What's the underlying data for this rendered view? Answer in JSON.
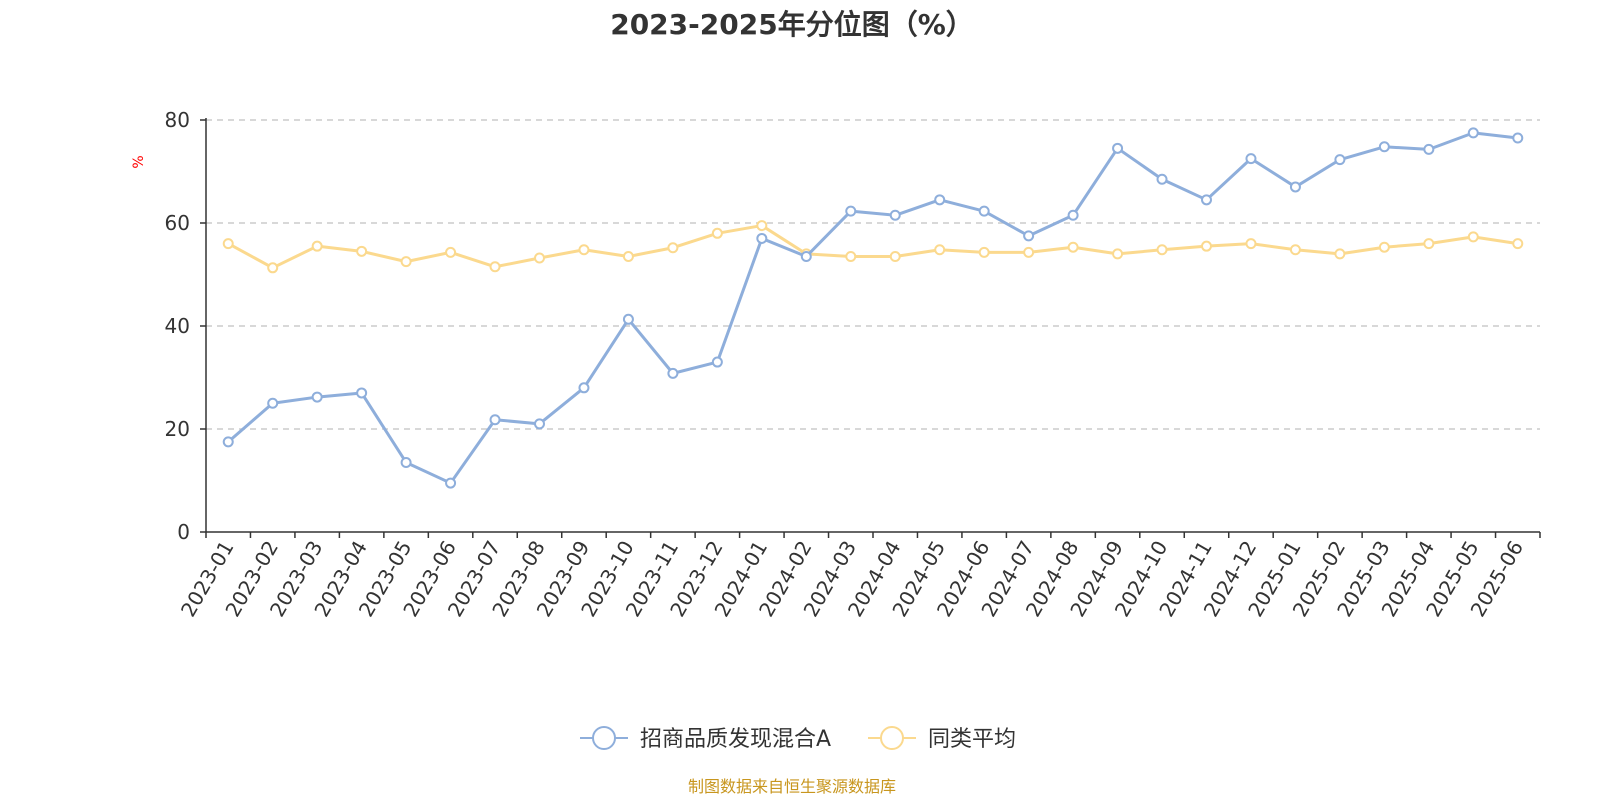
{
  "chart_data": {
    "type": "line",
    "title": "2023-2025年分位图（%）",
    "ylabel": "%",
    "ylim": [
      0,
      80
    ],
    "yticks": [
      0,
      20,
      40,
      60,
      80
    ],
    "grid": true,
    "legend_position": "bottom-center",
    "categories": [
      "2023-01",
      "2023-02",
      "2023-03",
      "2023-04",
      "2023-05",
      "2023-06",
      "2023-07",
      "2023-08",
      "2023-09",
      "2023-10",
      "2023-11",
      "2023-12",
      "2024-01",
      "2024-02",
      "2024-03",
      "2024-04",
      "2024-05",
      "2024-06",
      "2024-07",
      "2024-08",
      "2024-09",
      "2024-10",
      "2024-11",
      "2024-12",
      "2025-01",
      "2025-02",
      "2025-03",
      "2025-04",
      "2025-05",
      "2025-06"
    ],
    "series": [
      {
        "name": "招商品质发现混合A",
        "color": "#8eaedb",
        "values": [
          17.5,
          25,
          26.2,
          27,
          13.5,
          9.5,
          21.8,
          21,
          28,
          41.3,
          30.8,
          33,
          57,
          53.5,
          62.3,
          61.5,
          64.5,
          62.3,
          57.5,
          61.5,
          74.5,
          68.5,
          64.5,
          72.5,
          67,
          72.3,
          74.8,
          74.3,
          77.5,
          76.5
        ]
      },
      {
        "name": "同类平均",
        "color": "#fbd98e",
        "values": [
          56,
          51.3,
          55.5,
          54.5,
          52.5,
          54.3,
          51.5,
          53.2,
          54.8,
          53.5,
          55.2,
          58,
          59.5,
          54,
          53.5,
          53.5,
          54.8,
          54.3,
          54.3,
          55.3,
          54,
          54.8,
          55.5,
          56,
          54.8,
          54,
          55.3,
          56,
          57.3,
          56
        ]
      }
    ]
  },
  "source": "制图数据来自恒生聚源数据库"
}
